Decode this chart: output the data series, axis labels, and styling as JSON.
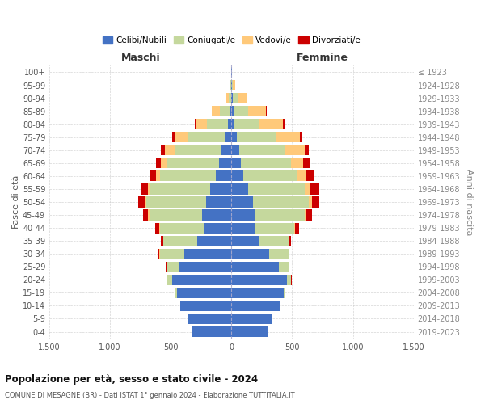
{
  "age_groups": [
    "0-4",
    "5-9",
    "10-14",
    "15-19",
    "20-24",
    "25-29",
    "30-34",
    "35-39",
    "40-44",
    "45-49",
    "50-54",
    "55-59",
    "60-64",
    "65-69",
    "70-74",
    "75-79",
    "80-84",
    "85-89",
    "90-94",
    "95-99",
    "100+"
  ],
  "birth_years": [
    "2019-2023",
    "2014-2018",
    "2009-2013",
    "2004-2008",
    "1999-2003",
    "1994-1998",
    "1989-1993",
    "1984-1988",
    "1979-1983",
    "1974-1978",
    "1969-1973",
    "1964-1968",
    "1959-1963",
    "1954-1958",
    "1949-1953",
    "1944-1948",
    "1939-1943",
    "1934-1938",
    "1929-1933",
    "1924-1928",
    "≤ 1923"
  ],
  "colors": {
    "celibi": "#4472c4",
    "coniugati": "#c5d89d",
    "vedovi": "#ffc97a",
    "divorziati": "#cc0000"
  },
  "maschi": {
    "celibi": [
      330,
      360,
      420,
      450,
      490,
      430,
      390,
      280,
      230,
      245,
      210,
      175,
      130,
      100,
      80,
      55,
      30,
      15,
      5,
      3,
      2
    ],
    "coniugati": [
      0,
      0,
      2,
      10,
      40,
      100,
      200,
      280,
      360,
      430,
      490,
      490,
      460,
      430,
      390,
      310,
      170,
      80,
      20,
      5,
      2
    ],
    "vedovi": [
      0,
      0,
      0,
      0,
      5,
      5,
      2,
      3,
      5,
      10,
      15,
      20,
      30,
      50,
      80,
      100,
      90,
      65,
      25,
      5,
      1
    ],
    "divorziati": [
      0,
      0,
      0,
      0,
      2,
      5,
      10,
      20,
      30,
      45,
      55,
      65,
      55,
      40,
      30,
      20,
      10,
      5,
      2,
      0,
      0
    ]
  },
  "femmine": {
    "celibi": [
      300,
      330,
      400,
      430,
      460,
      390,
      310,
      230,
      195,
      200,
      175,
      140,
      100,
      80,
      65,
      45,
      25,
      15,
      8,
      3,
      2
    ],
    "coniugati": [
      0,
      0,
      2,
      5,
      30,
      80,
      160,
      240,
      320,
      400,
      460,
      460,
      440,
      410,
      380,
      320,
      200,
      120,
      45,
      10,
      2
    ],
    "vedovi": [
      0,
      0,
      0,
      0,
      2,
      5,
      3,
      5,
      10,
      15,
      30,
      45,
      70,
      100,
      160,
      200,
      200,
      150,
      70,
      15,
      3
    ],
    "divorziati": [
      0,
      0,
      0,
      0,
      2,
      3,
      5,
      15,
      30,
      50,
      60,
      80,
      65,
      50,
      30,
      20,
      10,
      5,
      2,
      0,
      0
    ]
  },
  "title": "Popolazione per età, sesso e stato civile - 2024",
  "subtitle": "COMUNE DI MESAGNE (BR) - Dati ISTAT 1° gennaio 2024 - Elaborazione TUTTITALIA.IT",
  "xlabel_left": "Maschi",
  "xlabel_right": "Femmine",
  "ylabel_left": "Fasce di età",
  "ylabel_right": "Anni di nascita",
  "xlim": 1500,
  "xticks": [
    -1500,
    -1000,
    -500,
    0,
    500,
    1000,
    1500
  ],
  "xticklabels": [
    "1.500",
    "1.000",
    "500",
    "0",
    "500",
    "1.000",
    "1.500"
  ],
  "bg_color": "#ffffff",
  "grid_color": "#cccccc"
}
